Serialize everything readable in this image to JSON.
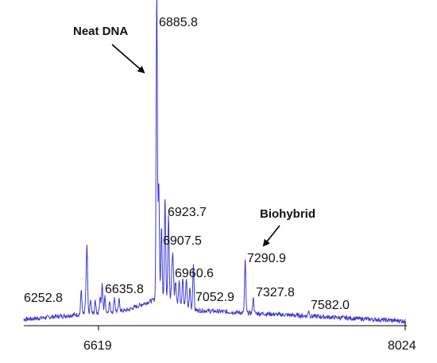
{
  "chart_data": {
    "type": "line",
    "title": "",
    "xlabel": "",
    "ylabel": "",
    "xlim": [
      6040,
      8024
    ],
    "ylim": [
      0,
      100
    ],
    "grid": false,
    "legend": "none",
    "x_ticks": [
      6619,
      8024
    ],
    "line_color": "#3c3ccf",
    "series": [
      {
        "peaks": [
          {
            "x": 6252.8,
            "y": 3
          },
          {
            "x": 6540,
            "y": 8
          },
          {
            "x": 6566,
            "y": 21
          },
          {
            "x": 6635.8,
            "y": 9
          },
          {
            "x": 6885.8,
            "y": 100
          },
          {
            "x": 6895,
            "y": 38
          },
          {
            "x": 6907.5,
            "y": 23
          },
          {
            "x": 6923.7,
            "y": 33
          },
          {
            "x": 6940,
            "y": 18
          },
          {
            "x": 6960.6,
            "y": 12
          },
          {
            "x": 7052.9,
            "y": 4
          },
          {
            "x": 7290.9,
            "y": 17
          },
          {
            "x": 7327.8,
            "y": 5
          },
          {
            "x": 7582.0,
            "y": 2
          }
        ]
      }
    ]
  },
  "annotations": {
    "neat_dna": "Neat DNA",
    "biohybrid": "Biohybrid"
  },
  "peak_labels": [
    "6885.8",
    "6923.7",
    "6907.5",
    "6960.6",
    "7290.9",
    "6252.8",
    "6635.8",
    "7052.9",
    "7327.8",
    "7582.0"
  ],
  "x_tick_labels": [
    "6619",
    "8024"
  ]
}
